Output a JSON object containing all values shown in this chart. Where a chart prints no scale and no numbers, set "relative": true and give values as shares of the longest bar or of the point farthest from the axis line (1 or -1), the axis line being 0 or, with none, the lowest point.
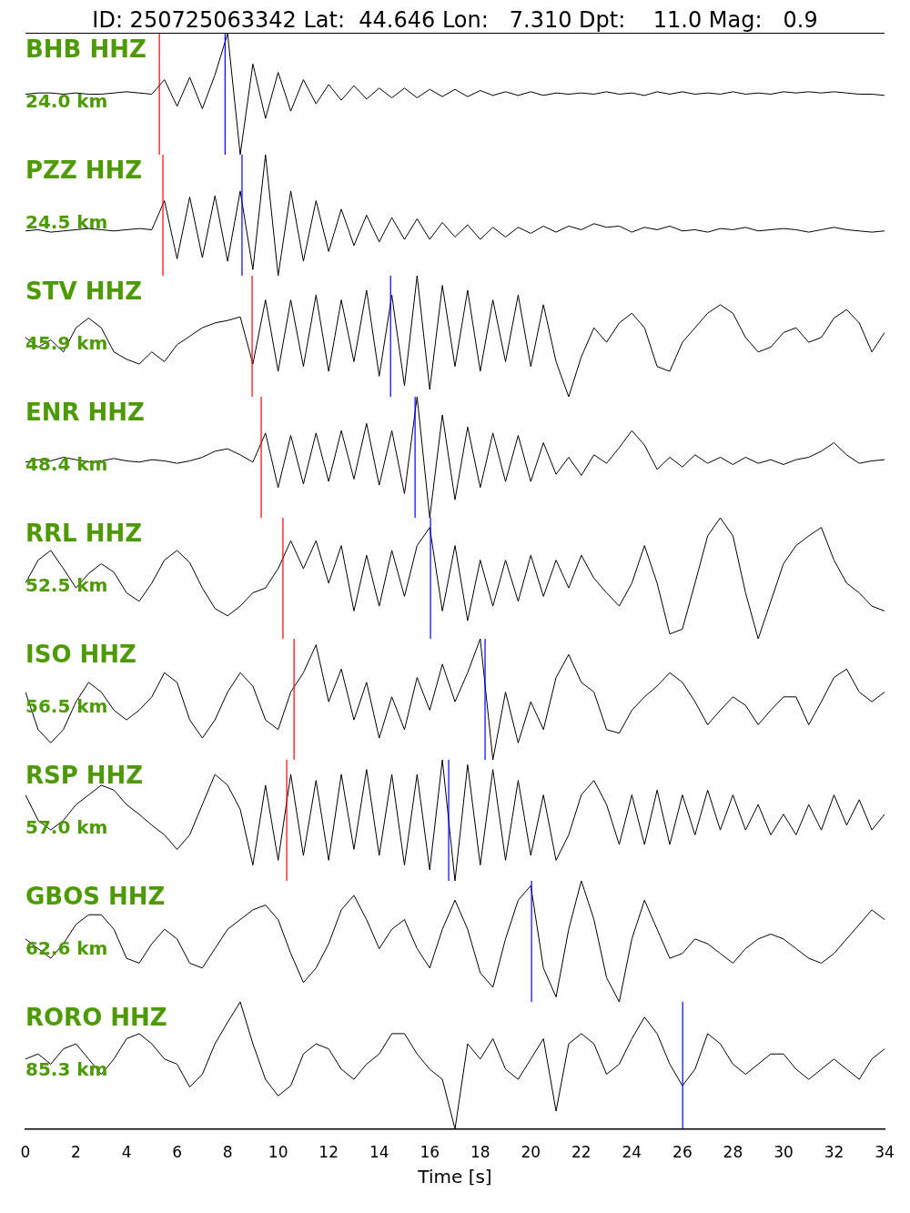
{
  "chart_data": [
    {
      "type": "line",
      "title": "ID: 250725063342 Lat:  44.646 Lon:   7.310 Dpt:    11.0 Mag:   0.9",
      "relative": true,
      "tick_labels": false,
      "xlim": [
        0,
        34
      ],
      "color": "#000000",
      "annotations": [
        "BHB HHZ",
        "24.0 km"
      ],
      "ref_lines": [
        {
          "axis": "x",
          "value": 5.3,
          "color": "#ff0000"
        },
        {
          "axis": "x",
          "value": 7.9,
          "color": "#0000ff"
        }
      ],
      "x": [
        0,
        0.5,
        1,
        1.5,
        2,
        2.5,
        3,
        3.5,
        4,
        4.5,
        5,
        5.5,
        6,
        6.5,
        7,
        7.5,
        8,
        8.5,
        9,
        9.5,
        10,
        10.5,
        11,
        11.5,
        12,
        12.5,
        13,
        13.5,
        14,
        14.5,
        15,
        15.5,
        16,
        16.5,
        17,
        17.5,
        18,
        18.5,
        19,
        19.5,
        20,
        20.5,
        21,
        21.5,
        22,
        22.5,
        23,
        23.5,
        24,
        24.5,
        25,
        25.5,
        26,
        26.5,
        27,
        27.5,
        28,
        28.5,
        29,
        29.5,
        30,
        30.5,
        31,
        31.5,
        32,
        32.5,
        33,
        33.5,
        34
      ],
      "values": [
        0.5,
        0.51,
        0.51,
        0.5,
        0.51,
        0.5,
        0.5,
        0.51,
        0.52,
        0.51,
        0.5,
        0.62,
        0.4,
        0.64,
        0.38,
        0.66,
        1.0,
        0.0,
        0.75,
        0.3,
        0.68,
        0.36,
        0.62,
        0.42,
        0.58,
        0.45,
        0.57,
        0.46,
        0.55,
        0.47,
        0.55,
        0.47,
        0.54,
        0.48,
        0.54,
        0.48,
        0.53,
        0.49,
        0.52,
        0.49,
        0.52,
        0.49,
        0.51,
        0.5,
        0.51,
        0.5,
        0.52,
        0.5,
        0.51,
        0.49,
        0.52,
        0.5,
        0.52,
        0.5,
        0.51,
        0.5,
        0.52,
        0.5,
        0.51,
        0.5,
        0.52,
        0.51,
        0.52,
        0.51,
        0.52,
        0.51,
        0.5,
        0.5,
        0.49
      ]
    },
    {
      "type": "line",
      "relative": true,
      "tick_labels": false,
      "xlim": [
        0,
        34
      ],
      "color": "#000000",
      "annotations": [
        "PZZ HHZ",
        "24.5 km"
      ],
      "ref_lines": [
        {
          "axis": "x",
          "value": 5.44,
          "color": "#ff0000"
        },
        {
          "axis": "x",
          "value": 8.57,
          "color": "#0000ff"
        }
      ],
      "x": [
        0,
        0.5,
        1,
        1.5,
        2,
        2.5,
        3,
        3.5,
        4,
        4.5,
        5,
        5.5,
        6,
        6.5,
        7,
        7.5,
        8,
        8.5,
        9,
        9.5,
        10,
        10.5,
        11,
        11.5,
        12,
        12.5,
        13,
        13.5,
        14,
        14.5,
        15,
        15.5,
        16,
        16.5,
        17,
        17.5,
        18,
        18.5,
        19,
        19.5,
        20,
        20.5,
        21,
        21.5,
        22,
        22.5,
        23,
        23.5,
        24,
        24.5,
        25,
        25.5,
        26,
        26.5,
        27,
        27.5,
        28,
        28.5,
        29,
        29.5,
        30,
        30.5,
        31,
        31.5,
        32,
        32.5,
        33,
        33.5,
        34
      ],
      "values": [
        0.37,
        0.38,
        0.36,
        0.37,
        0.38,
        0.39,
        0.38,
        0.37,
        0.38,
        0.39,
        0.38,
        0.62,
        0.14,
        0.65,
        0.15,
        0.66,
        0.12,
        0.7,
        0.05,
        1.0,
        0.0,
        0.7,
        0.12,
        0.62,
        0.2,
        0.55,
        0.25,
        0.5,
        0.28,
        0.48,
        0.3,
        0.47,
        0.3,
        0.44,
        0.32,
        0.42,
        0.3,
        0.4,
        0.32,
        0.4,
        0.35,
        0.41,
        0.36,
        0.41,
        0.38,
        0.43,
        0.4,
        0.41,
        0.36,
        0.4,
        0.38,
        0.41,
        0.37,
        0.38,
        0.36,
        0.39,
        0.38,
        0.4,
        0.37,
        0.38,
        0.39,
        0.38,
        0.36,
        0.38,
        0.4,
        0.38,
        0.37,
        0.36,
        0.37
      ]
    },
    {
      "type": "line",
      "relative": true,
      "tick_labels": false,
      "xlim": [
        0,
        34
      ],
      "color": "#000000",
      "annotations": [
        "STV HHZ",
        "45.9 km"
      ],
      "ref_lines": [
        {
          "axis": "x",
          "value": 8.97,
          "color": "#ff0000"
        },
        {
          "axis": "x",
          "value": 14.45,
          "color": "#0000ff"
        }
      ],
      "x": [
        0,
        0.5,
        1,
        1.5,
        2,
        2.5,
        3,
        3.5,
        4,
        4.5,
        5,
        5.5,
        6,
        6.5,
        7,
        7.5,
        8,
        8.5,
        9,
        9.5,
        10,
        10.5,
        11,
        11.5,
        12,
        12.5,
        13,
        13.5,
        14,
        14.5,
        15,
        15.5,
        16,
        16.5,
        17,
        17.5,
        18,
        18.5,
        19,
        19.5,
        20,
        20.5,
        21,
        21.5,
        22,
        22.5,
        23,
        23.5,
        24,
        24.5,
        25,
        25.5,
        26,
        26.5,
        27,
        27.5,
        28,
        28.5,
        29,
        29.5,
        30,
        30.5,
        31,
        31.5,
        32,
        32.5,
        33,
        33.5,
        34
      ],
      "values": [
        0.49,
        0.41,
        0.47,
        0.37,
        0.57,
        0.65,
        0.57,
        0.37,
        0.31,
        0.27,
        0.37,
        0.29,
        0.43,
        0.5,
        0.57,
        0.61,
        0.63,
        0.66,
        0.27,
        0.8,
        0.21,
        0.8,
        0.25,
        0.84,
        0.21,
        0.8,
        0.29,
        0.88,
        0.17,
        0.84,
        0.09,
        1.0,
        0.06,
        0.92,
        0.25,
        0.88,
        0.21,
        0.8,
        0.29,
        0.84,
        0.25,
        0.76,
        0.29,
        0.0,
        0.33,
        0.57,
        0.45,
        0.61,
        0.69,
        0.57,
        0.25,
        0.21,
        0.45,
        0.57,
        0.69,
        0.76,
        0.69,
        0.49,
        0.37,
        0.41,
        0.53,
        0.57,
        0.45,
        0.49,
        0.65,
        0.72,
        0.61,
        0.37,
        0.53
      ]
    },
    {
      "type": "line",
      "relative": true,
      "tick_labels": false,
      "xlim": [
        0,
        34
      ],
      "color": "#000000",
      "annotations": [
        "ENR HHZ",
        "48.4 km"
      ],
      "ref_lines": [
        {
          "axis": "x",
          "value": 9.33,
          "color": "#ff0000"
        },
        {
          "axis": "x",
          "value": 15.42,
          "color": "#0000ff"
        }
      ],
      "x": [
        0,
        0.5,
        1,
        1.5,
        2,
        2.5,
        3,
        3.5,
        4,
        4.5,
        5,
        5.5,
        6,
        6.5,
        7,
        7.5,
        8,
        8.5,
        9,
        9.5,
        10,
        10.5,
        11,
        11.5,
        12,
        12.5,
        13,
        13.5,
        14,
        14.5,
        15,
        15.5,
        16,
        16.5,
        17,
        17.5,
        18,
        18.5,
        19,
        19.5,
        20,
        20.5,
        21,
        21.5,
        22,
        22.5,
        23,
        23.5,
        24,
        24.5,
        25,
        25.5,
        26,
        26.5,
        27,
        27.5,
        28,
        28.5,
        29,
        29.5,
        30,
        30.5,
        31,
        31.5,
        32,
        32.5,
        33,
        33.5,
        34
      ],
      "values": [
        0.46,
        0.48,
        0.47,
        0.5,
        0.48,
        0.46,
        0.47,
        0.49,
        0.47,
        0.46,
        0.48,
        0.47,
        0.45,
        0.47,
        0.5,
        0.55,
        0.57,
        0.52,
        0.46,
        0.7,
        0.25,
        0.68,
        0.28,
        0.7,
        0.3,
        0.72,
        0.32,
        0.78,
        0.27,
        0.72,
        0.2,
        1.0,
        0.0,
        0.85,
        0.15,
        0.75,
        0.25,
        0.7,
        0.3,
        0.68,
        0.3,
        0.62,
        0.36,
        0.5,
        0.35,
        0.52,
        0.45,
        0.58,
        0.72,
        0.6,
        0.4,
        0.5,
        0.42,
        0.52,
        0.45,
        0.5,
        0.44,
        0.5,
        0.45,
        0.48,
        0.44,
        0.48,
        0.5,
        0.55,
        0.62,
        0.52,
        0.45,
        0.47,
        0.48
      ]
    },
    {
      "type": "line",
      "relative": true,
      "tick_labels": false,
      "xlim": [
        0,
        34
      ],
      "color": "#000000",
      "annotations": [
        "RRL HHZ",
        "52.5 km"
      ],
      "ref_lines": [
        {
          "axis": "x",
          "value": 10.19,
          "color": "#ff0000"
        },
        {
          "axis": "x",
          "value": 16.03,
          "color": "#0000ff"
        }
      ],
      "x": [
        0,
        0.5,
        1,
        1.5,
        2,
        2.5,
        3,
        3.5,
        4,
        4.5,
        5,
        5.5,
        6,
        6.5,
        7,
        7.5,
        8,
        8.5,
        9,
        9.5,
        10,
        10.5,
        11,
        11.5,
        12,
        12.5,
        13,
        13.5,
        14,
        14.5,
        15,
        15.5,
        16,
        16.5,
        17,
        17.5,
        18,
        18.5,
        19,
        19.5,
        20,
        20.5,
        21,
        21.5,
        22,
        22.5,
        23,
        23.5,
        24,
        24.5,
        25,
        25.5,
        26,
        26.5,
        27,
        27.5,
        28,
        28.5,
        29,
        29.5,
        30,
        30.5,
        31,
        31.5,
        32,
        32.5,
        33,
        33.5,
        34
      ],
      "values": [
        0.46,
        0.65,
        0.73,
        0.58,
        0.42,
        0.54,
        0.62,
        0.55,
        0.38,
        0.31,
        0.46,
        0.65,
        0.73,
        0.63,
        0.42,
        0.25,
        0.19,
        0.27,
        0.38,
        0.42,
        0.58,
        0.81,
        0.58,
        0.81,
        0.46,
        0.77,
        0.23,
        0.69,
        0.27,
        0.73,
        0.35,
        0.77,
        0.92,
        0.23,
        0.77,
        0.15,
        0.65,
        0.27,
        0.65,
        0.31,
        0.69,
        0.35,
        0.65,
        0.42,
        0.69,
        0.5,
        0.38,
        0.27,
        0.46,
        0.77,
        0.46,
        0.04,
        0.08,
        0.46,
        0.85,
        1.0,
        0.85,
        0.38,
        0.0,
        0.31,
        0.62,
        0.77,
        0.85,
        0.92,
        0.65,
        0.46,
        0.38,
        0.27,
        0.23
      ]
    },
    {
      "type": "line",
      "relative": true,
      "tick_labels": false,
      "xlim": [
        0,
        34
      ],
      "color": "#000000",
      "annotations": [
        "ISO HHZ",
        "56.5 km"
      ],
      "ref_lines": [
        {
          "axis": "x",
          "value": 10.63,
          "color": "#ff0000"
        },
        {
          "axis": "x",
          "value": 18.19,
          "color": "#0000ff"
        }
      ],
      "x": [
        0,
        0.5,
        1,
        1.5,
        2,
        2.5,
        3,
        3.5,
        4,
        4.5,
        5,
        5.5,
        6,
        6.5,
        7,
        7.5,
        8,
        8.5,
        9,
        9.5,
        10,
        10.5,
        11,
        11.5,
        12,
        12.5,
        13,
        13.5,
        14,
        14.5,
        15,
        15.5,
        16,
        16.5,
        17,
        17.5,
        18,
        18.5,
        19,
        19.5,
        20,
        20.5,
        21,
        21.5,
        22,
        22.5,
        23,
        23.5,
        24,
        24.5,
        25,
        25.5,
        26,
        26.5,
        27,
        27.5,
        28,
        28.5,
        29,
        29.5,
        30,
        30.5,
        31,
        31.5,
        32,
        32.5,
        33,
        33.5,
        34
      ],
      "values": [
        0.56,
        0.25,
        0.14,
        0.25,
        0.48,
        0.64,
        0.56,
        0.41,
        0.33,
        0.41,
        0.52,
        0.72,
        0.64,
        0.33,
        0.18,
        0.33,
        0.56,
        0.72,
        0.61,
        0.33,
        0.25,
        0.56,
        0.72,
        0.95,
        0.48,
        0.75,
        0.33,
        0.64,
        0.18,
        0.52,
        0.25,
        0.68,
        0.41,
        0.79,
        0.48,
        0.72,
        1.0,
        0.0,
        0.56,
        0.14,
        0.48,
        0.25,
        0.68,
        0.87,
        0.64,
        0.56,
        0.25,
        0.22,
        0.41,
        0.52,
        0.61,
        0.72,
        0.64,
        0.48,
        0.29,
        0.41,
        0.52,
        0.45,
        0.29,
        0.41,
        0.52,
        0.52,
        0.29,
        0.48,
        0.68,
        0.75,
        0.56,
        0.48,
        0.56
      ]
    },
    {
      "type": "line",
      "relative": true,
      "tick_labels": false,
      "xlim": [
        0,
        34
      ],
      "color": "#000000",
      "annotations": [
        "RSP HHZ",
        "57.0 km"
      ],
      "ref_lines": [
        {
          "axis": "x",
          "value": 10.34,
          "color": "#ff0000"
        },
        {
          "axis": "x",
          "value": 16.75,
          "color": "#0000ff"
        }
      ],
      "x": [
        0,
        0.5,
        1,
        1.5,
        2,
        2.5,
        3,
        3.5,
        4,
        4.5,
        5,
        5.5,
        6,
        6.5,
        7,
        7.5,
        8,
        8.5,
        9,
        9.5,
        10,
        10.5,
        11,
        11.5,
        12,
        12.5,
        13,
        13.5,
        14,
        14.5,
        15,
        15.5,
        16,
        16.5,
        17,
        17.5,
        18,
        18.5,
        19,
        19.5,
        20,
        20.5,
        21,
        21.5,
        22,
        22.5,
        23,
        23.5,
        24,
        24.5,
        25,
        25.5,
        26,
        26.5,
        27,
        27.5,
        28,
        28.5,
        29,
        29.5,
        30,
        30.5,
        31,
        31.5,
        32,
        32.5,
        33,
        33.5,
        34
      ],
      "values": [
        0.71,
        0.5,
        0.42,
        0.5,
        0.63,
        0.71,
        0.79,
        0.75,
        0.63,
        0.55,
        0.46,
        0.38,
        0.26,
        0.38,
        0.63,
        0.88,
        0.79,
        0.59,
        0.13,
        0.79,
        0.17,
        0.88,
        0.21,
        0.83,
        0.17,
        0.88,
        0.26,
        0.92,
        0.21,
        0.88,
        0.13,
        0.88,
        0.09,
        1.0,
        0.0,
        0.96,
        0.13,
        0.92,
        0.17,
        0.83,
        0.21,
        0.71,
        0.17,
        0.38,
        0.71,
        0.83,
        0.63,
        0.3,
        0.71,
        0.3,
        0.75,
        0.3,
        0.71,
        0.38,
        0.75,
        0.42,
        0.71,
        0.42,
        0.63,
        0.38,
        0.55,
        0.38,
        0.63,
        0.42,
        0.71,
        0.46,
        0.67,
        0.42,
        0.55
      ]
    },
    {
      "type": "line",
      "relative": true,
      "tick_labels": false,
      "xlim": [
        0,
        34
      ],
      "color": "#000000",
      "annotations": [
        "GBOS HHZ",
        "62.6 km"
      ],
      "ref_lines": [
        {
          "axis": "x",
          "value": 20.03,
          "color": "#0000ff"
        }
      ],
      "x": [
        0,
        0.5,
        1,
        1.5,
        2,
        2.5,
        3,
        3.5,
        4,
        4.5,
        5,
        5.5,
        6,
        6.5,
        7,
        7.5,
        8,
        8.5,
        9,
        9.5,
        10,
        10.5,
        11,
        11.5,
        12,
        12.5,
        13,
        13.5,
        14,
        14.5,
        15,
        15.5,
        16,
        16.5,
        17,
        17.5,
        18,
        18.5,
        19,
        19.5,
        20,
        20.5,
        21,
        21.5,
        22,
        22.5,
        23,
        23.5,
        24,
        24.5,
        25,
        25.5,
        26,
        26.5,
        27,
        27.5,
        28,
        28.5,
        29,
        29.5,
        30,
        30.5,
        31,
        31.5,
        32,
        32.5,
        33,
        33.5,
        34
      ],
      "values": [
        0.52,
        0.44,
        0.36,
        0.48,
        0.64,
        0.72,
        0.72,
        0.6,
        0.36,
        0.32,
        0.48,
        0.6,
        0.52,
        0.32,
        0.28,
        0.44,
        0.6,
        0.68,
        0.76,
        0.8,
        0.68,
        0.4,
        0.16,
        0.28,
        0.48,
        0.76,
        0.88,
        0.68,
        0.44,
        0.6,
        0.68,
        0.44,
        0.28,
        0.6,
        0.84,
        0.6,
        0.24,
        0.12,
        0.52,
        0.84,
        0.96,
        0.28,
        0.04,
        0.6,
        1.0,
        0.68,
        0.2,
        0.0,
        0.52,
        0.84,
        0.6,
        0.36,
        0.4,
        0.52,
        0.48,
        0.4,
        0.32,
        0.44,
        0.52,
        0.56,
        0.52,
        0.44,
        0.36,
        0.32,
        0.4,
        0.52,
        0.64,
        0.76,
        0.68
      ]
    },
    {
      "type": "line",
      "relative": true,
      "tick_labels": "x",
      "xlim": [
        0,
        34
      ],
      "xticks": [
        0,
        2,
        4,
        6,
        8,
        10,
        12,
        14,
        16,
        18,
        20,
        22,
        24,
        26,
        28,
        30,
        32,
        34
      ],
      "xlabel": "Time [s]",
      "color": "#000000",
      "annotations": [
        "RORO HHZ",
        "85.3 km"
      ],
      "ref_lines": [
        {
          "axis": "x",
          "value": 26.01,
          "color": "#0000ff"
        }
      ],
      "x": [
        0,
        0.5,
        1,
        1.5,
        2,
        2.5,
        3,
        3.5,
        4,
        4.5,
        5,
        5.5,
        6,
        6.5,
        7,
        7.5,
        8,
        8.5,
        9,
        9.5,
        10,
        10.5,
        11,
        11.5,
        12,
        12.5,
        13,
        13.5,
        14,
        14.5,
        15,
        15.5,
        16,
        16.5,
        17,
        17.5,
        18,
        18.5,
        19,
        19.5,
        20,
        20.5,
        21,
        21.5,
        22,
        22.5,
        23,
        23.5,
        24,
        24.5,
        25,
        25.5,
        26,
        26.5,
        27,
        27.5,
        28,
        28.5,
        29,
        29.5,
        30,
        30.5,
        31,
        31.5,
        32,
        32.5,
        33,
        33.5,
        34
      ],
      "values": [
        0.55,
        0.59,
        0.51,
        0.63,
        0.67,
        0.55,
        0.43,
        0.55,
        0.71,
        0.75,
        0.67,
        0.55,
        0.51,
        0.33,
        0.43,
        0.67,
        0.84,
        1.0,
        0.67,
        0.39,
        0.26,
        0.34,
        0.59,
        0.67,
        0.63,
        0.47,
        0.39,
        0.51,
        0.59,
        0.75,
        0.75,
        0.59,
        0.47,
        0.39,
        0.0,
        0.67,
        0.55,
        0.71,
        0.47,
        0.39,
        0.55,
        0.71,
        0.14,
        0.67,
        0.75,
        0.67,
        0.43,
        0.51,
        0.71,
        0.88,
        0.75,
        0.51,
        0.34,
        0.47,
        0.75,
        0.67,
        0.51,
        0.43,
        0.51,
        0.59,
        0.59,
        0.47,
        0.39,
        0.47,
        0.55,
        0.47,
        0.39,
        0.55,
        0.63
      ]
    }
  ]
}
